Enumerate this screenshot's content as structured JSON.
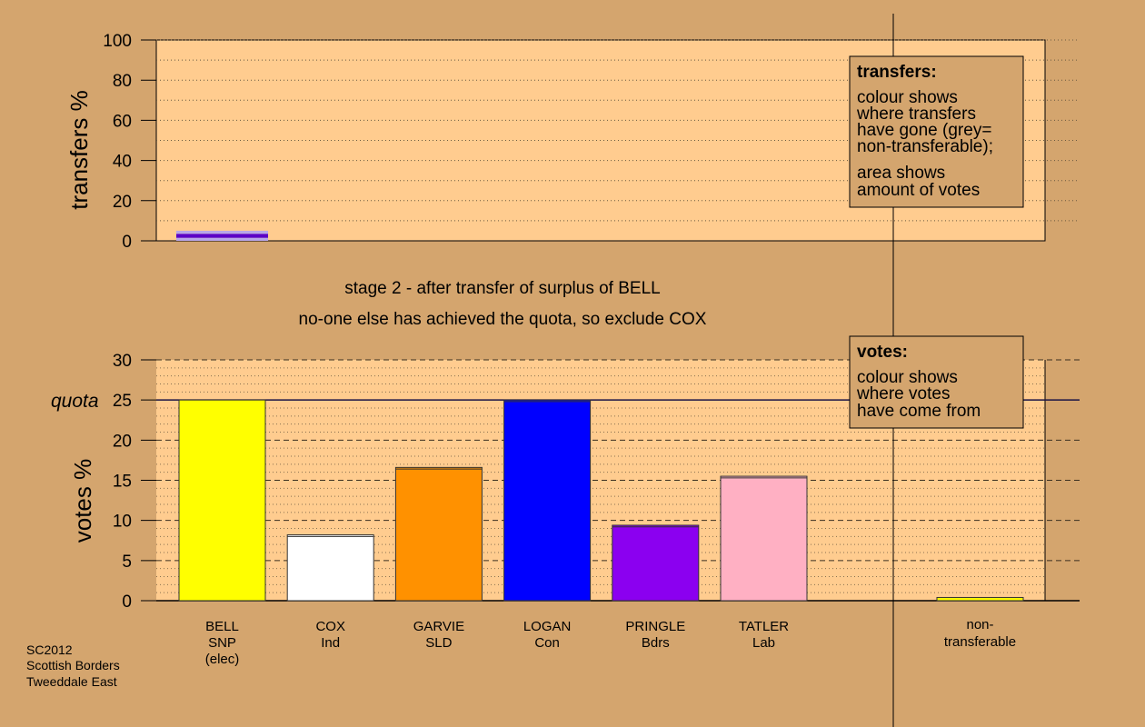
{
  "colors": {
    "background": "#d4a56e",
    "panel": "#ffcc8f",
    "axis": "#000000",
    "quota_line": "#1a1446",
    "transfer_bar_light": "#b7a6e8",
    "transfer_bar_dark": "#5a00c8"
  },
  "chart_data": [
    {
      "type": "bar",
      "panel": "transfers",
      "ylabel": "transfers %",
      "ylim": [
        0,
        100
      ],
      "yticks": [
        0,
        20,
        40,
        60,
        80,
        100
      ],
      "grid": "dotted",
      "bars": [
        {
          "candidate": "BELL",
          "total": 5,
          "segments": [
            {
              "value": 1.5,
              "color": "#b7a6e8"
            },
            {
              "value": 2,
              "color": "#5a00c8"
            },
            {
              "value": 1.5,
              "color": "#b7a6e8"
            }
          ]
        }
      ],
      "legend_box": {
        "title": "transfers:",
        "lines_a": [
          "colour shows",
          "where transfers",
          "have gone (grey=",
          "non-transferable);"
        ],
        "lines_b": [
          "area shows",
          "amount of votes"
        ]
      }
    },
    {
      "type": "bar",
      "panel": "votes",
      "ylabel": "votes %",
      "ylim": [
        0,
        30
      ],
      "yticks": [
        0,
        5,
        10,
        15,
        20,
        25,
        30
      ],
      "grid": "dashed",
      "quota": {
        "label": "quota",
        "value": 25
      },
      "categories": [
        {
          "name": "BELL",
          "party": "SNP",
          "note": "(elec)",
          "value": 25.0,
          "added": 0,
          "color": "#ffff00"
        },
        {
          "name": "COX",
          "party": "Ind",
          "note": "",
          "value": 8.2,
          "added": 0.2,
          "color": "#ffffff"
        },
        {
          "name": "GARVIE",
          "party": "SLD",
          "note": "",
          "value": 16.6,
          "added": 0.2,
          "color": "#ff9100"
        },
        {
          "name": "LOGAN",
          "party": "Con",
          "note": "",
          "value": 25.0,
          "added": 0.2,
          "color": "#0000ff"
        },
        {
          "name": "PRINGLE",
          "party": "Bdrs",
          "note": "",
          "value": 9.4,
          "added": 0.2,
          "color": "#8b00f0"
        },
        {
          "name": "TATLER",
          "party": "Lab",
          "note": "",
          "value": 15.5,
          "added": 0.2,
          "color": "#ffb0c3"
        }
      ],
      "nontransferable": {
        "line1": "non-",
        "line2": "transferable",
        "value": 0.4,
        "color": "#ffff00"
      },
      "legend_box": {
        "title": "votes:",
        "lines": [
          "colour shows",
          "where votes",
          "have come from"
        ]
      }
    }
  ],
  "stage": {
    "line1": "stage 2 - after transfer of surplus of BELL",
    "line2": "no-one else has achieved the quota, so exclude COX"
  },
  "footer": [
    "SC2012",
    "Scottish Borders",
    "Tweeddale East"
  ]
}
